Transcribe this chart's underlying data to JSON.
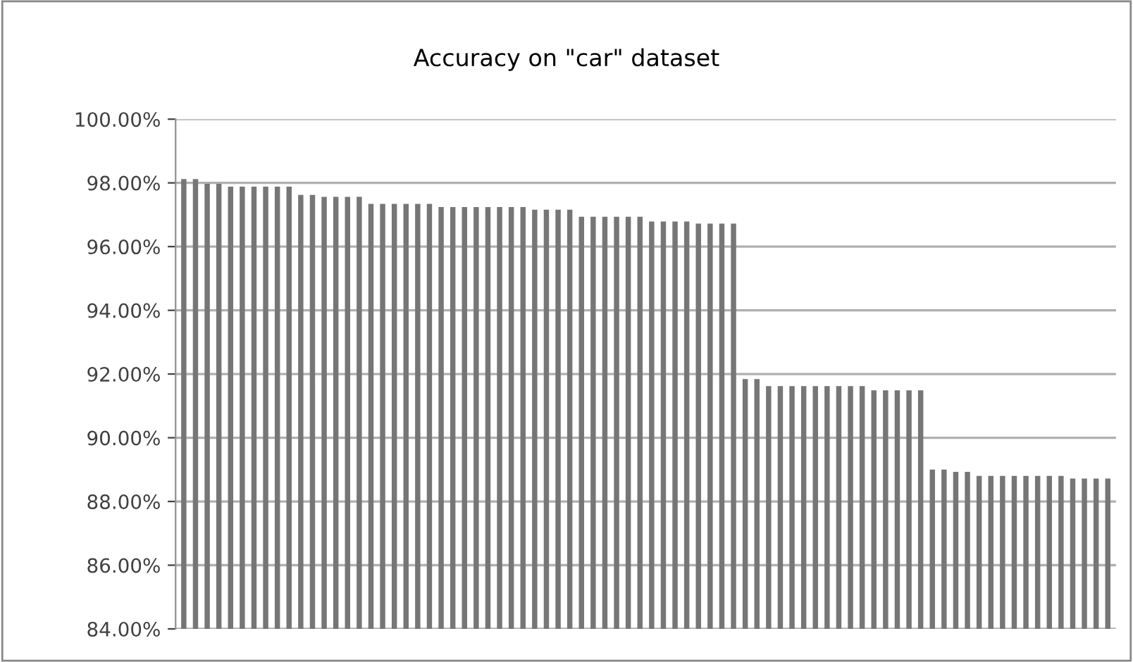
{
  "chart_data": {
    "type": "bar",
    "title": "Accuracy on \"car\" dataset",
    "categories": [
      null,
      null,
      null,
      null,
      null,
      null,
      null,
      null,
      null,
      null,
      null,
      null,
      null,
      null,
      null,
      null,
      null,
      null,
      null,
      null,
      null,
      null,
      null,
      null,
      null,
      null,
      null,
      null,
      null,
      null,
      null,
      null,
      null,
      null,
      null,
      null,
      null,
      null,
      null,
      null,
      null,
      null,
      null,
      null,
      null,
      null,
      null,
      null,
      null,
      null,
      null,
      null,
      null,
      null,
      null,
      null,
      null,
      null,
      null,
      null,
      null,
      null,
      null,
      null,
      null,
      null,
      null,
      null,
      null,
      null,
      null,
      null,
      null,
      null,
      null,
      null,
      null,
      null,
      null,
      null
    ],
    "values": [
      98.12,
      98.12,
      97.97,
      97.97,
      97.88,
      97.88,
      97.88,
      97.88,
      97.88,
      97.88,
      97.62,
      97.62,
      97.56,
      97.56,
      97.56,
      97.56,
      97.34,
      97.34,
      97.34,
      97.34,
      97.34,
      97.34,
      97.24,
      97.24,
      97.24,
      97.24,
      97.24,
      97.24,
      97.24,
      97.24,
      97.16,
      97.16,
      97.16,
      97.16,
      96.94,
      96.94,
      96.94,
      96.94,
      96.94,
      96.94,
      96.79,
      96.79,
      96.79,
      96.79,
      96.72,
      96.72,
      96.72,
      96.72,
      91.84,
      91.84,
      91.62,
      91.62,
      91.62,
      91.62,
      91.62,
      91.62,
      91.62,
      91.62,
      91.62,
      91.49,
      91.49,
      91.49,
      91.49,
      91.49,
      89.0,
      89.0,
      88.93,
      88.93,
      88.8,
      88.8,
      88.8,
      88.8,
      88.8,
      88.8,
      88.8,
      88.8,
      88.72,
      88.72,
      88.72,
      88.72
    ],
    "color": "#767676",
    "ylim": [
      84,
      100
    ],
    "yticks": [
      {
        "value": 84,
        "label": "84.00%"
      },
      {
        "value": 86,
        "label": "86.00%"
      },
      {
        "value": 88,
        "label": "88.00%"
      },
      {
        "value": 90,
        "label": "90.00%"
      },
      {
        "value": 92,
        "label": "92.00%"
      },
      {
        "value": 94,
        "label": "94.00%"
      },
      {
        "value": 96,
        "label": "96.00%"
      },
      {
        "value": 98,
        "label": "98.00%"
      },
      {
        "value": 100,
        "label": "100.00%"
      }
    ],
    "grid": "y"
  }
}
